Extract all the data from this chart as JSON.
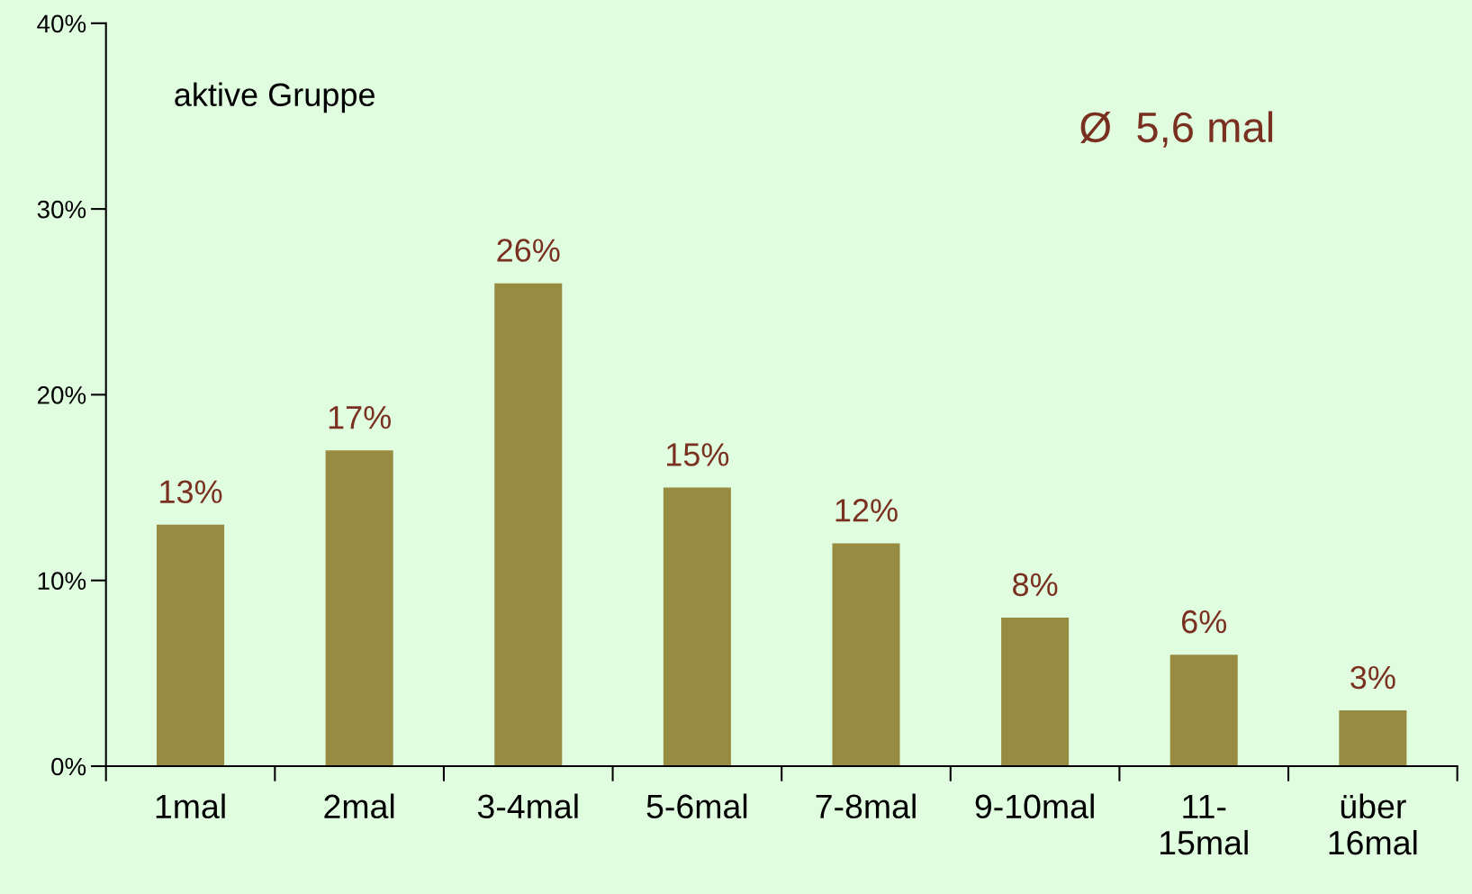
{
  "chart_data": {
    "type": "bar",
    "categories": [
      "1mal",
      "2mal",
      "3-4mal",
      "5-6mal",
      "7-8mal",
      "9-10mal",
      "11-\n15mal",
      "über\n16mal"
    ],
    "values": [
      13,
      17,
      26,
      15,
      12,
      8,
      6,
      3
    ],
    "color": "#978b42",
    "data_labels": true,
    "value_labels": [
      "13%",
      "17%",
      "26%",
      "15%",
      "12%",
      "8%",
      "6%",
      "3%"
    ],
    "ylim": [
      0,
      40
    ],
    "yticks": [
      {
        "value": 0,
        "label": "0%"
      },
      {
        "value": 10,
        "label": "10%"
      },
      {
        "value": 20,
        "label": "20%"
      },
      {
        "value": 30,
        "label": "30%"
      },
      {
        "value": 40,
        "label": "40%"
      }
    ],
    "annotations": [
      "aktive Gruppe",
      "Ø  5,6 mal"
    ],
    "grid": false,
    "legend": false
  }
}
